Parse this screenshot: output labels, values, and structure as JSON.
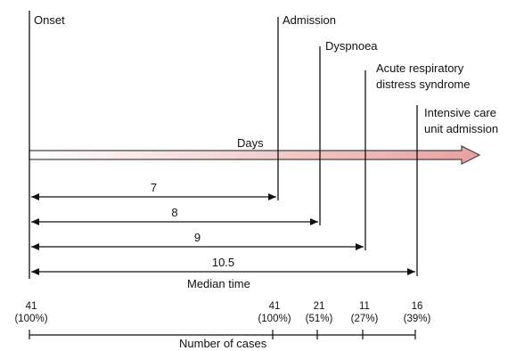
{
  "events": [
    {
      "label_lines": [
        "Onset"
      ],
      "day": 0
    },
    {
      "label_lines": [
        "Admission"
      ],
      "day": 7
    },
    {
      "label_lines": [
        "Dyspnoea"
      ],
      "day": 8
    },
    {
      "label_lines": [
        "Acute respiratory",
        "distress syndrome"
      ],
      "day": 9
    },
    {
      "label_lines": [
        "Intensive care",
        "unit admission"
      ],
      "day": 10.5
    }
  ],
  "axis_label": "Days",
  "intervals": [
    {
      "label": "7",
      "day": 7
    },
    {
      "label": "8",
      "day": 8
    },
    {
      "label": "9",
      "day": 9
    },
    {
      "label": "10.5",
      "day": 10.5
    }
  ],
  "median_label": "Median time",
  "cases": [
    {
      "count": "41",
      "pct": "(100%)"
    },
    {
      "count": "41",
      "pct": "(100%)"
    },
    {
      "count": "21",
      "pct": "(51%)"
    },
    {
      "count": "11",
      "pct": "(27%)"
    },
    {
      "count": "16",
      "pct": "(39%)"
    }
  ],
  "cases_label": "Number of cases",
  "colors": {
    "line": "#111111",
    "arrow_start": "#ffffff",
    "arrow_end": "#e8a0a0",
    "arrow_stroke": "#444444"
  }
}
